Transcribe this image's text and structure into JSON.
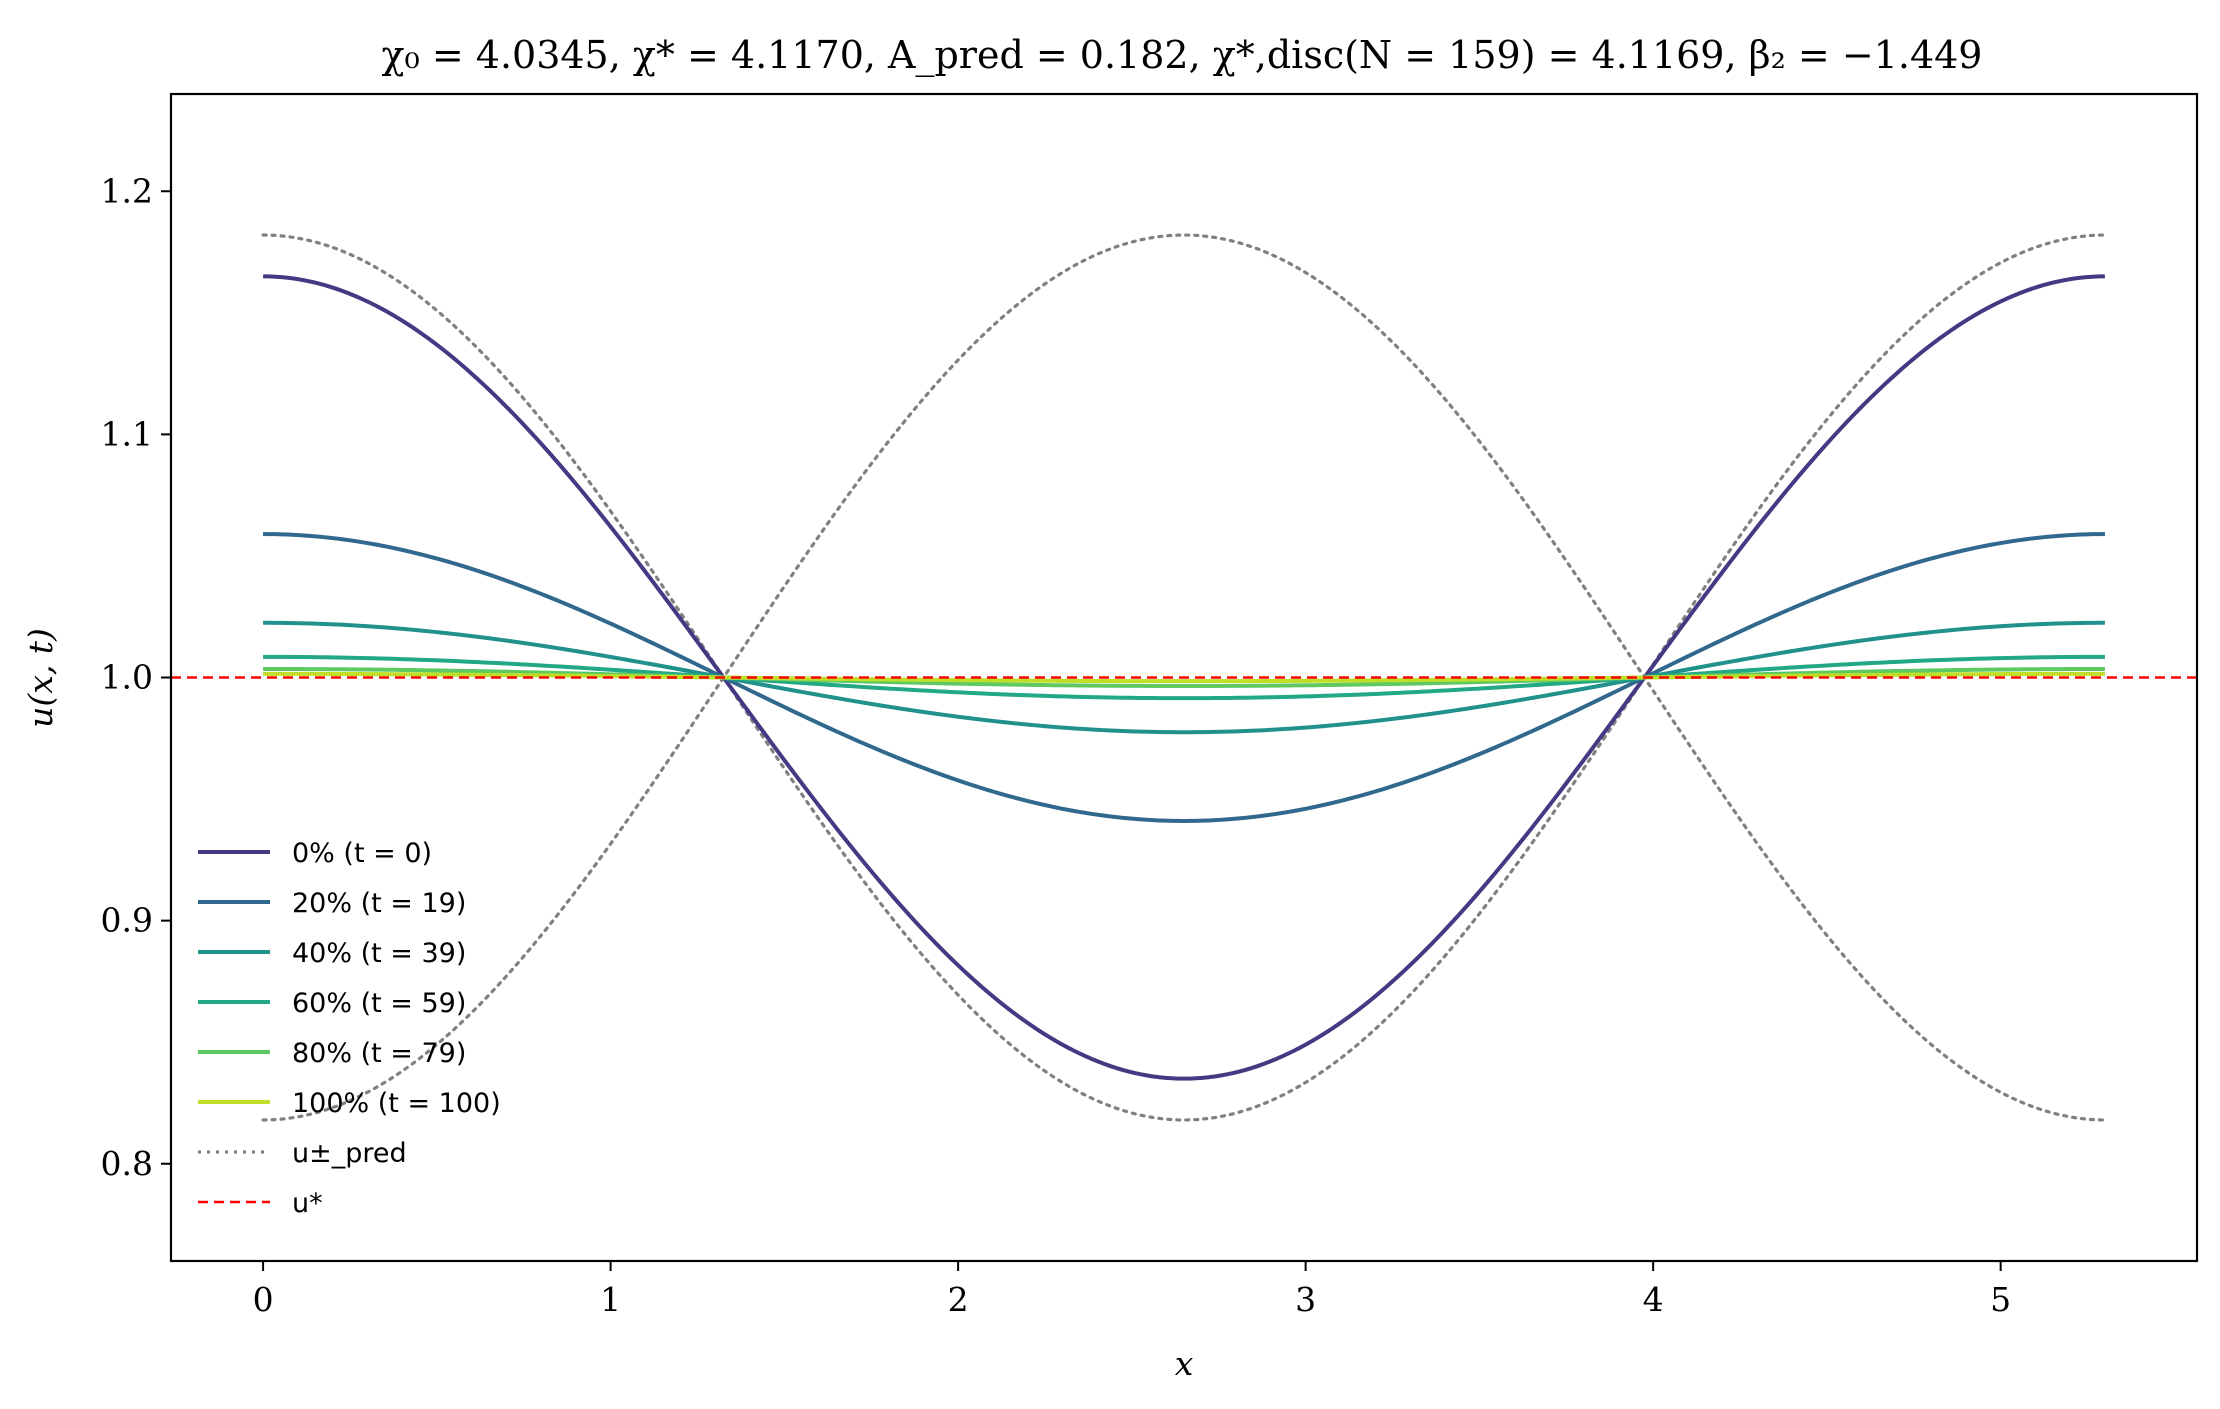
{
  "chart_data": {
    "type": "line",
    "title": "χ₀ = 4.0345,  χ* = 4.1170,  A_pred = 0.182,  χ*,disc(N = 159) = 4.1169,  β₂ = −1.449",
    "xlabel": "x",
    "ylabel": "u(x, t)",
    "xlim": [
      -0.265,
      5.565
    ],
    "ylim": [
      0.76,
      1.24
    ],
    "xticks": [
      0,
      1,
      2,
      3,
      4,
      5
    ],
    "yticks": [
      0.8,
      0.9,
      1.0,
      1.1,
      1.2
    ],
    "xtick_labels": [
      "0",
      "1",
      "2",
      "3",
      "4",
      "5"
    ],
    "ytick_labels": [
      "0.8",
      "0.9",
      "1.0",
      "1.1",
      "1.2"
    ],
    "domain_length": 5.3,
    "grid": false,
    "legend_position": "lower-left",
    "series": [
      {
        "name": "0% (t = 0)",
        "amplitude": 0.165,
        "color": "#443983",
        "style": "solid"
      },
      {
        "name": "20% (t = 19)",
        "amplitude": 0.059,
        "color": "#31688e",
        "style": "solid"
      },
      {
        "name": "40% (t = 39)",
        "amplitude": 0.0225,
        "color": "#21918c",
        "style": "solid"
      },
      {
        "name": "60% (t = 59)",
        "amplitude": 0.0085,
        "color": "#22a884",
        "style": "solid"
      },
      {
        "name": "80% (t = 79)",
        "amplitude": 0.0035,
        "color": "#5ec962",
        "style": "solid"
      },
      {
        "name": "100% (t = 100)",
        "amplitude": 0.0015,
        "color": "#bddf26",
        "style": "solid"
      }
    ],
    "envelope": {
      "name": "u±_pred",
      "amplitude": 0.182,
      "color": "#808080",
      "style": "dotted"
    },
    "reference": {
      "name": "u*",
      "value": 1.0,
      "color": "#ff0000",
      "style": "dashed"
    }
  }
}
